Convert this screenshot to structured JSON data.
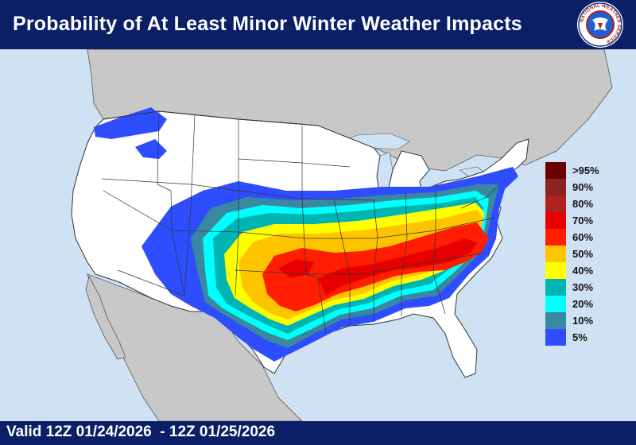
{
  "header": {
    "title": "Probability of At Least Minor Winter Weather Impacts"
  },
  "logo": {
    "text": "NATIONAL WEATHER SERVICE",
    "icon": "nws-logo-icon"
  },
  "footer": {
    "valid_text": "Valid 12Z 01/24/2026  - 12Z 01/25/2026"
  },
  "legend": [
    {
      "label": ">95%",
      "color": "#6b0000"
    },
    {
      "label": "90%",
      "color": "#8c2323"
    },
    {
      "label": "80%",
      "color": "#b02222"
    },
    {
      "label": "70%",
      "color": "#e60000"
    },
    {
      "label": "60%",
      "color": "#ff1e00"
    },
    {
      "label": "50%",
      "color": "#ffc400"
    },
    {
      "label": "40%",
      "color": "#ffff00"
    },
    {
      "label": "30%",
      "color": "#00b4b4"
    },
    {
      "label": "20%",
      "color": "#00ffff"
    },
    {
      "label": "10%",
      "color": "#3a88a0"
    },
    {
      "label": "5%",
      "color": "#2e4dff"
    }
  ],
  "colors": {
    "header_bg": "#0b1f66",
    "ocean": "#cfe2f3",
    "land": "#ffffff",
    "foreign_land": "#c8c8c8"
  }
}
